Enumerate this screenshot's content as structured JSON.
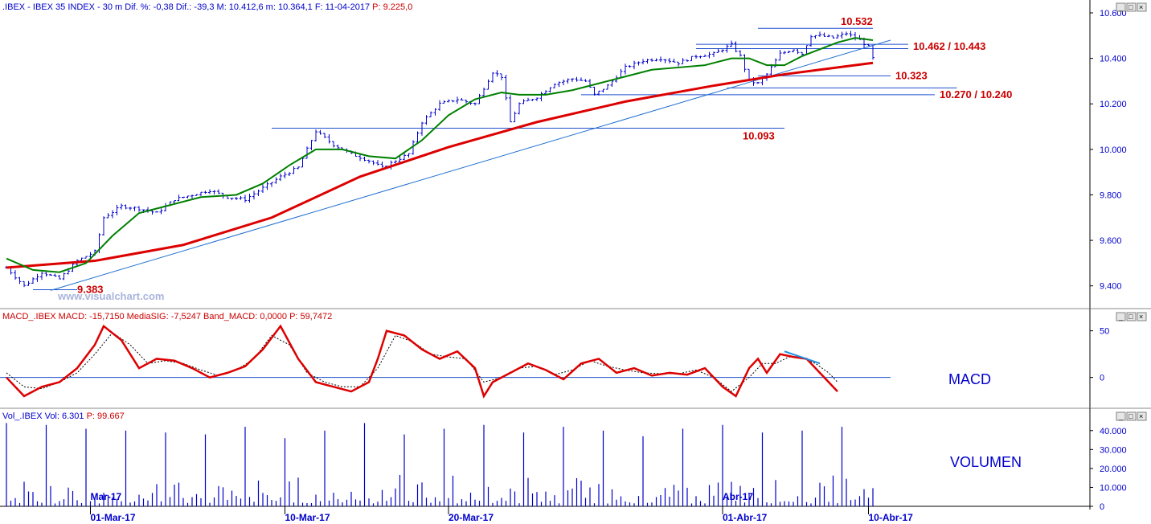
{
  "header": {
    "price": {
      "prefix": ".IBEX - IBEX 35 INDEX -  30 m  Dif. %: -0,38  Dif.: -39,3  M: 10.412,6  m: 10.364,1  F: 11-04-2017",
      "last": "  P: 9.225,0"
    },
    "macd": {
      "prefix": "MACD_.IBEX MACD: -15,7150  MediaSIG: -7,5247  Band_MACD: 0,0000",
      "last": "  P: 59,7472"
    },
    "volume": {
      "prefix": "Vol_.IBEX Vol: 6.301",
      "last": "  P: 99.667"
    }
  },
  "watermark": "www.visualchart.com",
  "panel_labels": {
    "macd": "MACD",
    "volume": "VOLUMEN"
  },
  "window_buttons": [
    "_",
    "□",
    "×"
  ],
  "colors": {
    "price_bars": "#0000cc",
    "ma_fast": "#008000",
    "ma_slow": "#dd0000",
    "macd_line": "#dd0000",
    "signal_line": "#000000",
    "trendline": "#1f6fd1",
    "levels": "#1f4fcc",
    "label_red": "#cc0000",
    "axis_text": "#0000cc",
    "divergence": "#1f8fe0"
  },
  "chart_data": [
    {
      "type": "ohlc",
      "title": ".IBEX - IBEX 35 INDEX - 30 m",
      "y_ticks": [
        "10.600",
        "10.400",
        "10.200",
        "10.000",
        "9.800",
        "9.600",
        "9.400"
      ],
      "ylim": [
        9300,
        10600
      ],
      "date_labels": [
        "Mar-17",
        "01-Mar-17",
        "10-Mar-17",
        "20-Mar-17",
        "Abr-17",
        "01-Abr-17",
        "10-Abr-17"
      ],
      "path_close": [
        [
          0,
          9480
        ],
        [
          4,
          9400
        ],
        [
          8,
          9460
        ],
        [
          12,
          9430
        ],
        [
          16,
          9510
        ],
        [
          20,
          9550
        ],
        [
          22,
          9700
        ],
        [
          26,
          9750
        ],
        [
          30,
          9740
        ],
        [
          34,
          9720
        ],
        [
          38,
          9780
        ],
        [
          42,
          9800
        ],
        [
          46,
          9820
        ],
        [
          50,
          9790
        ],
        [
          54,
          9780
        ],
        [
          58,
          9830
        ],
        [
          62,
          9880
        ],
        [
          66,
          9920
        ],
        [
          70,
          10080
        ],
        [
          74,
          10020
        ],
        [
          78,
          9980
        ],
        [
          82,
          9950
        ],
        [
          85,
          9920
        ],
        [
          88,
          9950
        ],
        [
          91,
          9980
        ],
        [
          94,
          10120
        ],
        [
          98,
          10200
        ],
        [
          102,
          10220
        ],
        [
          106,
          10200
        ],
        [
          110,
          10340
        ],
        [
          112,
          10320
        ],
        [
          114,
          10120
        ],
        [
          116,
          10200
        ],
        [
          120,
          10230
        ],
        [
          124,
          10290
        ],
        [
          128,
          10310
        ],
        [
          131,
          10300
        ],
        [
          133,
          10240
        ],
        [
          136,
          10280
        ],
        [
          140,
          10360
        ],
        [
          144,
          10390
        ],
        [
          148,
          10400
        ],
        [
          152,
          10380
        ],
        [
          156,
          10410
        ],
        [
          160,
          10420
        ],
        [
          164,
          10460
        ],
        [
          166,
          10410
        ],
        [
          168,
          10300
        ],
        [
          170,
          10290
        ],
        [
          172,
          10330
        ],
        [
          175,
          10420
        ],
        [
          178,
          10440
        ],
        [
          180,
          10420
        ],
        [
          182,
          10500
        ],
        [
          184,
          10500
        ],
        [
          187,
          10490
        ],
        [
          190,
          10510
        ],
        [
          193,
          10480
        ],
        [
          195,
          10450
        ],
        [
          196,
          10400
        ]
      ],
      "n_bars": 197,
      "ma_fast": {
        "label": "",
        "path": [
          [
            0,
            9520
          ],
          [
            6,
            9470
          ],
          [
            12,
            9460
          ],
          [
            18,
            9500
          ],
          [
            24,
            9620
          ],
          [
            30,
            9720
          ],
          [
            36,
            9750
          ],
          [
            44,
            9790
          ],
          [
            52,
            9800
          ],
          [
            58,
            9850
          ],
          [
            64,
            9930
          ],
          [
            70,
            10000
          ],
          [
            76,
            10000
          ],
          [
            82,
            9970
          ],
          [
            88,
            9960
          ],
          [
            94,
            10040
          ],
          [
            100,
            10150
          ],
          [
            106,
            10220
          ],
          [
            112,
            10250
          ],
          [
            116,
            10240
          ],
          [
            122,
            10240
          ],
          [
            128,
            10260
          ],
          [
            134,
            10290
          ],
          [
            140,
            10320
          ],
          [
            146,
            10350
          ],
          [
            152,
            10360
          ],
          [
            158,
            10370
          ],
          [
            164,
            10400
          ],
          [
            168,
            10400
          ],
          [
            172,
            10370
          ],
          [
            176,
            10370
          ],
          [
            180,
            10410
          ],
          [
            184,
            10440
          ],
          [
            188,
            10470
          ],
          [
            192,
            10490
          ],
          [
            196,
            10480
          ]
        ]
      },
      "ma_slow": {
        "label": "",
        "path": [
          [
            0,
            9480
          ],
          [
            20,
            9510
          ],
          [
            40,
            9580
          ],
          [
            60,
            9700
          ],
          [
            80,
            9880
          ],
          [
            100,
            10010
          ],
          [
            120,
            10120
          ],
          [
            140,
            10210
          ],
          [
            160,
            10280
          ],
          [
            176,
            10330
          ],
          [
            196,
            10380
          ]
        ]
      },
      "trendline": {
        "from": [
          10,
          9380
        ],
        "to": [
          200,
          10480
        ]
      },
      "levels": [
        {
          "label": "10.532",
          "value": 10532,
          "x_from": 170,
          "x_to": 196
        },
        {
          "label": "10.462 / 10.443",
          "value": 10462,
          "value2": 10443,
          "x_from": 156,
          "x_to": 204
        },
        {
          "label": "10.323",
          "value": 10323,
          "x_from": 170,
          "x_to": 200
        },
        {
          "label": "",
          "value": 10270,
          "x_from": 163,
          "x_to": 215
        },
        {
          "label": "10.270 / 10.240",
          "value": 10240,
          "x_from": 130,
          "x_to": 210
        },
        {
          "label": "10.093",
          "value": 10093,
          "x_from": 60,
          "x_to": 176
        },
        {
          "label": "9.383",
          "value": 9383,
          "x_from": 6,
          "x_to": 16
        }
      ]
    },
    {
      "type": "line",
      "title": "MACD_.IBEX MACD",
      "y_ticks": [
        "50",
        "0"
      ],
      "ylim": [
        -33,
        60
      ],
      "zero_line": 0,
      "macd": [
        [
          0,
          0
        ],
        [
          4,
          -20
        ],
        [
          8,
          -10
        ],
        [
          12,
          -5
        ],
        [
          16,
          10
        ],
        [
          20,
          35
        ],
        [
          22,
          55
        ],
        [
          26,
          40
        ],
        [
          30,
          10
        ],
        [
          34,
          20
        ],
        [
          38,
          18
        ],
        [
          42,
          10
        ],
        [
          46,
          0
        ],
        [
          50,
          5
        ],
        [
          54,
          12
        ],
        [
          58,
          30
        ],
        [
          62,
          55
        ],
        [
          66,
          20
        ],
        [
          70,
          -5
        ],
        [
          74,
          -10
        ],
        [
          78,
          -15
        ],
        [
          82,
          -5
        ],
        [
          84,
          20
        ],
        [
          86,
          50
        ],
        [
          90,
          45
        ],
        [
          94,
          30
        ],
        [
          98,
          20
        ],
        [
          102,
          28
        ],
        [
          106,
          10
        ],
        [
          108,
          -20
        ],
        [
          110,
          -5
        ],
        [
          114,
          5
        ],
        [
          118,
          15
        ],
        [
          122,
          8
        ],
        [
          126,
          -2
        ],
        [
          130,
          15
        ],
        [
          134,
          20
        ],
        [
          138,
          5
        ],
        [
          142,
          10
        ],
        [
          146,
          2
        ],
        [
          150,
          5
        ],
        [
          154,
          3
        ],
        [
          158,
          10
        ],
        [
          162,
          -10
        ],
        [
          165,
          -20
        ],
        [
          168,
          10
        ],
        [
          170,
          20
        ],
        [
          172,
          5
        ],
        [
          175,
          25
        ],
        [
          178,
          22
        ],
        [
          181,
          20
        ],
        [
          184,
          5
        ],
        [
          186,
          -5
        ],
        [
          188,
          -15
        ]
      ],
      "signal": [
        [
          0,
          5
        ],
        [
          4,
          -10
        ],
        [
          8,
          -12
        ],
        [
          12,
          -5
        ],
        [
          16,
          5
        ],
        [
          20,
          25
        ],
        [
          24,
          48
        ],
        [
          28,
          35
        ],
        [
          32,
          15
        ],
        [
          36,
          18
        ],
        [
          40,
          15
        ],
        [
          44,
          8
        ],
        [
          48,
          2
        ],
        [
          52,
          8
        ],
        [
          56,
          20
        ],
        [
          60,
          45
        ],
        [
          64,
          35
        ],
        [
          68,
          5
        ],
        [
          72,
          -5
        ],
        [
          76,
          -10
        ],
        [
          80,
          -10
        ],
        [
          84,
          10
        ],
        [
          88,
          45
        ],
        [
          92,
          38
        ],
        [
          96,
          25
        ],
        [
          100,
          22
        ],
        [
          104,
          20
        ],
        [
          108,
          -5
        ],
        [
          112,
          0
        ],
        [
          116,
          10
        ],
        [
          120,
          12
        ],
        [
          124,
          3
        ],
        [
          128,
          8
        ],
        [
          132,
          18
        ],
        [
          136,
          12
        ],
        [
          140,
          8
        ],
        [
          144,
          5
        ],
        [
          148,
          4
        ],
        [
          152,
          4
        ],
        [
          156,
          8
        ],
        [
          160,
          0
        ],
        [
          164,
          -15
        ],
        [
          168,
          0
        ],
        [
          171,
          15
        ],
        [
          174,
          15
        ],
        [
          177,
          22
        ],
        [
          180,
          21
        ],
        [
          183,
          15
        ],
        [
          186,
          5
        ],
        [
          188,
          -5
        ]
      ],
      "divergence_line": {
        "from": [
          176,
          28
        ],
        "to": [
          184,
          15
        ]
      }
    },
    {
      "type": "bar",
      "title": "Vol_.IBEX Vol",
      "y_ticks": [
        "40.000",
        "30.000",
        "20.000",
        "10.000",
        "0"
      ],
      "ylim": [
        0,
        45000
      ],
      "peak_volumes": [
        44000,
        43000,
        41000,
        40000,
        39000,
        38000,
        42000,
        36000,
        40000,
        44000,
        38000,
        41000,
        43000,
        39000,
        42000,
        40000,
        37000,
        41000,
        43000,
        39000,
        40000,
        42000,
        44000
      ],
      "typical_volume_range": [
        1500,
        12000
      ],
      "n_bars": 197
    }
  ]
}
